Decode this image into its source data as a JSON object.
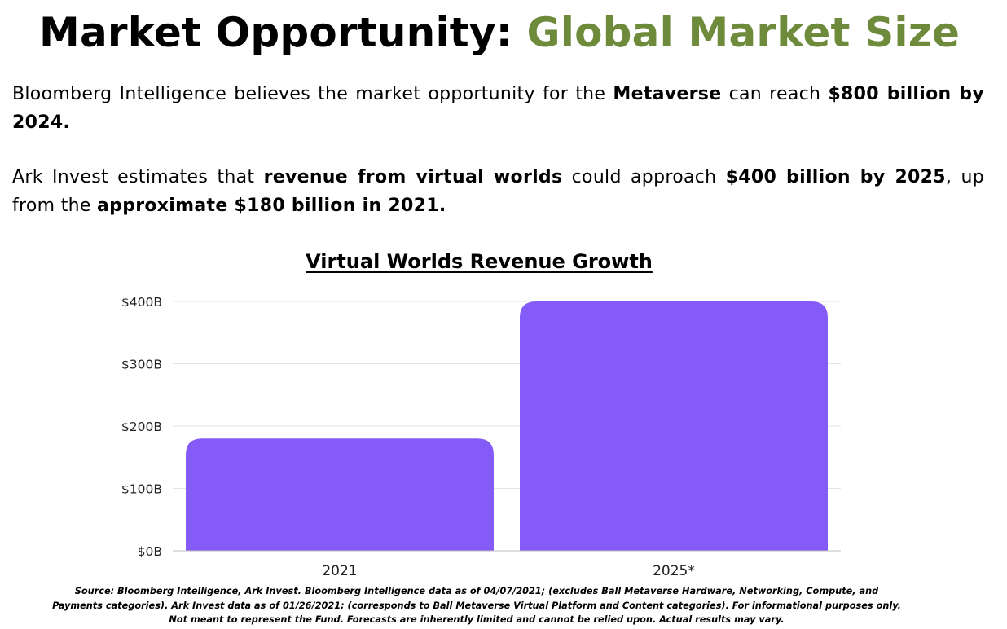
{
  "header": {
    "title_main": "Market Opportunity: ",
    "title_accent": "Global Market Size",
    "accent_color": "#6e8a3b"
  },
  "paragraphs": [
    {
      "segments": [
        {
          "text": "Bloomberg Intelligence believes the market opportunity for the ",
          "bold": false
        },
        {
          "text": "Metaverse",
          "bold": true
        },
        {
          "text": " can reach ",
          "bold": false
        },
        {
          "text": "$800 billion by 2024.",
          "bold": true
        }
      ]
    },
    {
      "segments": [
        {
          "text": "Ark Invest estimates that ",
          "bold": false
        },
        {
          "text": "revenue from virtual worlds",
          "bold": true
        },
        {
          "text": " could approach ",
          "bold": false
        },
        {
          "text": "$400 billion by 2025",
          "bold": true
        },
        {
          "text": ", up from the ",
          "bold": false
        },
        {
          "text": "approximate $180 billion in 2021.",
          "bold": true
        }
      ]
    }
  ],
  "chart_data": {
    "type": "bar",
    "title": "Virtual Worlds Revenue Growth",
    "categories": [
      "2021",
      "2025*"
    ],
    "values": [
      180,
      400
    ],
    "unit": "billion USD",
    "ylim": [
      0,
      400
    ],
    "yticks": [
      0,
      100,
      200,
      300,
      400
    ],
    "ytick_labels": [
      "$0B",
      "$100B",
      "$200B",
      "$300B",
      "$400B"
    ],
    "xlabel": "",
    "ylabel": "",
    "grid": true,
    "bar_color": "#855bf7",
    "grid_color": "#e4e4e4",
    "axis_color": "#bdbdbd"
  },
  "footer": {
    "source": "Source: Bloomberg Intelligence, Ark Invest. Bloomberg Intelligence data as of 04/07/2021; (excludes Ball Metaverse Hardware, Networking, Compute, and Payments categories). Ark Invest data as of  01/26/2021; (corresponds to Ball Metaverse Virtual Platform and Content categories). For informational purposes only. Not meant to represent the Fund. Forecasts are inherently limited and cannot be relied upon. Actual results may vary."
  }
}
